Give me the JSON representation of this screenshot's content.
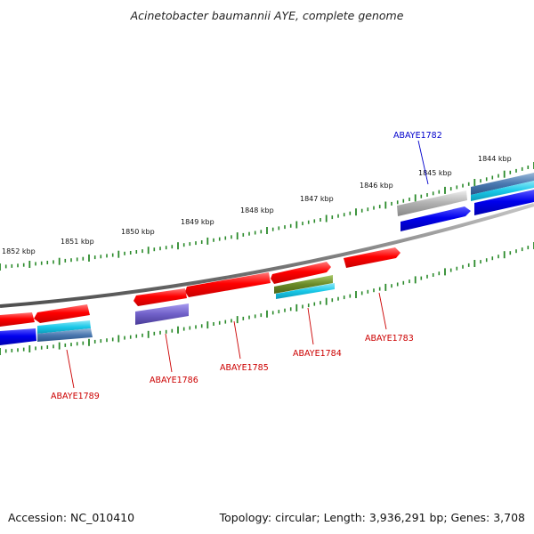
{
  "title": "Acinetobacter baumannii AYE, complete genome",
  "footer": {
    "accession": "Accession: NC_010410",
    "topology": "Topology: circular; Length: 3,936,291 bp; Genes: 3,708"
  },
  "kbp_labels": [
    "1852 kbp",
    "1851 kbp",
    "1850 kbp",
    "1849 kbp",
    "1848 kbp",
    "1847 kbp",
    "1846 kbp",
    "1845 kbp",
    "1844 kbp"
  ],
  "gene_labels": [
    {
      "text": "ABAYE1782",
      "color": "#0000cc"
    },
    {
      "text": "ABAYE1783",
      "color": "#cc0000"
    },
    {
      "text": "ABAYE1784",
      "color": "#cc0000"
    },
    {
      "text": "ABAYE1785",
      "color": "#cc0000"
    },
    {
      "text": "ABAYE1786",
      "color": "#cc0000"
    },
    {
      "text": "ABAYE1789",
      "color": "#cc0000"
    }
  ],
  "colors": {
    "forward_gene": "#ff0000",
    "reverse_gene": "#0000ee",
    "cyan_feature": "#19c8e8",
    "steel_feature": "#4a78b0",
    "purple_feature": "#7060c8",
    "olive_feature": "#6a8a28",
    "grey_feature": "#b0b0b0",
    "backbone": "#808080",
    "ticks": "#2a8a2a"
  }
}
